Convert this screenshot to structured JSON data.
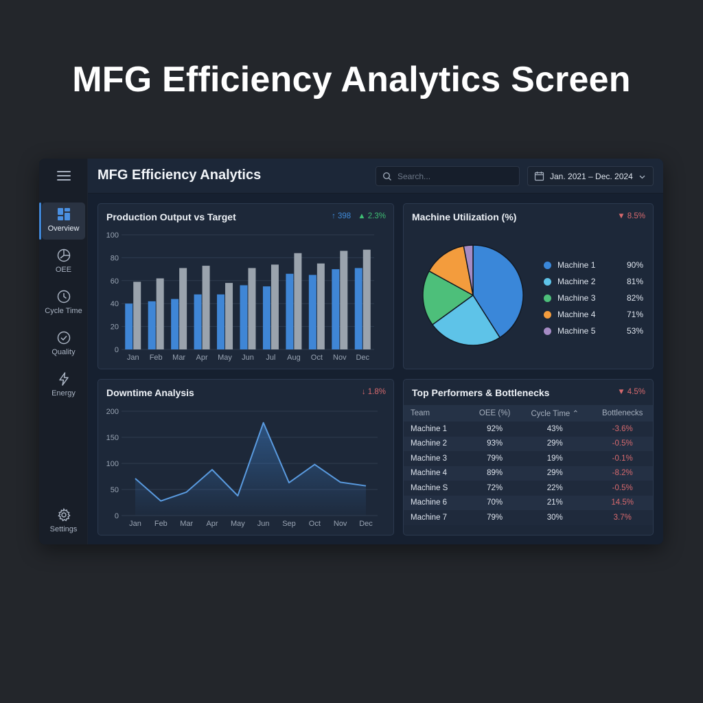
{
  "hero": {
    "title": "MFG Efficiency Analytics Screen"
  },
  "app": {
    "title": "MFG Efficiency Analytics",
    "search": {
      "placeholder": "Search...",
      "value": ""
    },
    "date_range": {
      "label": "Jan. 2021 – Dec. 2024"
    }
  },
  "sidebar": {
    "items": [
      {
        "label": "Overview",
        "icon": "dashboard-icon",
        "active": true
      },
      {
        "label": "OEE",
        "icon": "gauge-icon",
        "active": false
      },
      {
        "label": "Cycle Time",
        "icon": "clock-icon",
        "active": false
      },
      {
        "label": "Quality",
        "icon": "check-circle-icon",
        "active": false
      },
      {
        "label": "Energy",
        "icon": "lightning-icon",
        "active": false
      }
    ],
    "settings": {
      "label": "Settings",
      "icon": "gear-icon"
    }
  },
  "cards": {
    "production": {
      "title": "Production Output vs Target",
      "badge_primary": "↑ 398",
      "badge_secondary": "▲ 2.3%"
    },
    "utilization": {
      "title": "Machine Utilization (%)",
      "badge": "▼ 8.5%"
    },
    "downtime": {
      "title": "Downtime Analysis",
      "badge": "↓ 1.8%"
    },
    "performers": {
      "title": "Top Performers & Bottlenecks",
      "badge": "▼ 4.5%",
      "columns": [
        "Team",
        "OEE (%)",
        "Cycle Time ⌃",
        "Bottlenecks"
      ],
      "rows": [
        [
          "Machine 1",
          "92%",
          "43%",
          "-3.6%"
        ],
        [
          "Machine 2",
          "93%",
          "29%",
          "-0.5%"
        ],
        [
          "Machine 3",
          "79%",
          "19%",
          "-0.1%"
        ],
        [
          "Machine 4",
          "89%",
          "29%",
          "-8.2%"
        ],
        [
          "Machine S",
          "72%",
          "22%",
          "-0.5%"
        ],
        [
          "Machine 6",
          "70%",
          "21%",
          "14.5%"
        ],
        [
          "Machine 7",
          "79%",
          "30%",
          "3.7%"
        ]
      ]
    }
  },
  "colors": {
    "accent_blue": "#3f86d6",
    "target_gray": "#9aa3ad",
    "positive_green": "#3fbf74",
    "negative_red": "#e0575a",
    "pie": [
      "#3a87d9",
      "#5ec3e8",
      "#4dbf7a",
      "#f39c3d",
      "#a58bc4"
    ]
  },
  "chart_data": [
    {
      "type": "bar",
      "title": "Production Output vs Target",
      "categories": [
        "Jan",
        "Feb",
        "Mar",
        "Apr",
        "May",
        "Jun",
        "Jul",
        "Aug",
        "Oct",
        "Nov",
        "Dec"
      ],
      "series": [
        {
          "name": "Output",
          "color": "#3f86d6",
          "values": [
            40,
            42,
            44,
            48,
            48,
            56,
            55,
            66,
            65,
            70,
            71
          ]
        },
        {
          "name": "Target",
          "color": "#9aa3ad",
          "values": [
            59,
            62,
            71,
            73,
            58,
            71,
            74,
            84,
            75,
            86,
            87
          ]
        }
      ],
      "yticks": [
        0,
        20,
        40,
        60,
        80,
        100
      ],
      "ylim": [
        0,
        100
      ],
      "grid": true
    },
    {
      "type": "pie",
      "title": "Machine Utilization (%)",
      "labels": [
        "Machine 1",
        "Machine 2",
        "Machine 3",
        "Machine 4",
        "Machine 5"
      ],
      "legend_values": [
        "90%",
        "81%",
        "82%",
        "71%",
        "53%"
      ],
      "slice_shares": [
        41,
        24,
        18,
        14,
        3
      ],
      "legend_position": "right"
    },
    {
      "type": "area",
      "title": "Downtime Analysis",
      "categories": [
        "Jan",
        "Feb",
        "Mar",
        "Apr",
        "May",
        "Jun",
        "Sep",
        "Oct",
        "Nov",
        "Dec"
      ],
      "values": [
        71,
        28,
        45,
        88,
        38,
        178,
        63,
        98,
        64,
        57
      ],
      "yticks": [
        0,
        50,
        100,
        150,
        200
      ],
      "ylim": [
        0,
        200
      ],
      "grid": true
    }
  ]
}
